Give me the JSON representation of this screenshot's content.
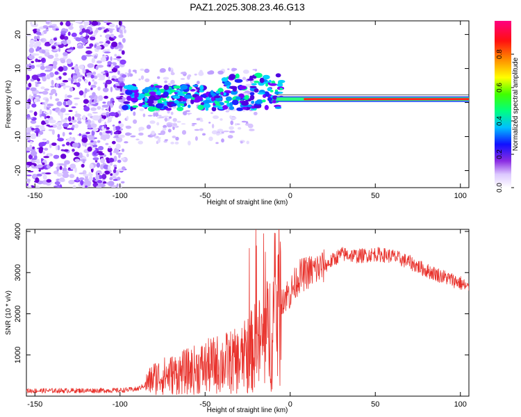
{
  "title": "PAZ1.2025.308.23.46.G13",
  "chart_data": [
    {
      "type": "heatmap",
      "description": "spectrogram",
      "xlabel": "Height of straight line (km)",
      "ylabel": "Frequency (Hz)",
      "xlim": [
        -155,
        105
      ],
      "ylim": [
        -25,
        24
      ],
      "xticks": [
        -150,
        -100,
        -50,
        0,
        50,
        100
      ],
      "yticks": [
        -20,
        -10,
        0,
        10,
        20
      ],
      "line_frequency_hz": 1,
      "colorbar": {
        "label": "Normalized spectral amplitude",
        "range": [
          0,
          1
        ],
        "ticks": [
          "0.0",
          "0.2",
          "0.4",
          "0.6",
          "0.8"
        ]
      }
    },
    {
      "type": "line",
      "xlabel": "Height of straight line (km)",
      "ylabel": "SNR (10 * v/v)",
      "xlim": [
        -155,
        105
      ],
      "ylim": [
        0,
        4050
      ],
      "xticks": [
        -150,
        -100,
        -50,
        0,
        50,
        100
      ],
      "yticks": [
        1000,
        2000,
        3000,
        4000
      ],
      "color": "#e8302a",
      "envelope_x": [
        -155,
        -100,
        -90,
        -86,
        -80,
        -70,
        -60,
        -50,
        -40,
        -30,
        -25,
        -20,
        -15,
        -10,
        -5,
        0,
        5,
        10,
        20,
        25,
        30,
        40,
        50,
        60,
        70,
        80,
        90,
        100,
        105
      ],
      "envelope_y": [
        130,
        140,
        170,
        250,
        450,
        520,
        600,
        700,
        800,
        850,
        1000,
        1200,
        1350,
        1800,
        2400,
        2500,
        2900,
        3000,
        3150,
        3300,
        3450,
        3400,
        3450,
        3400,
        3250,
        3050,
        2900,
        2750,
        2600
      ]
    }
  ]
}
